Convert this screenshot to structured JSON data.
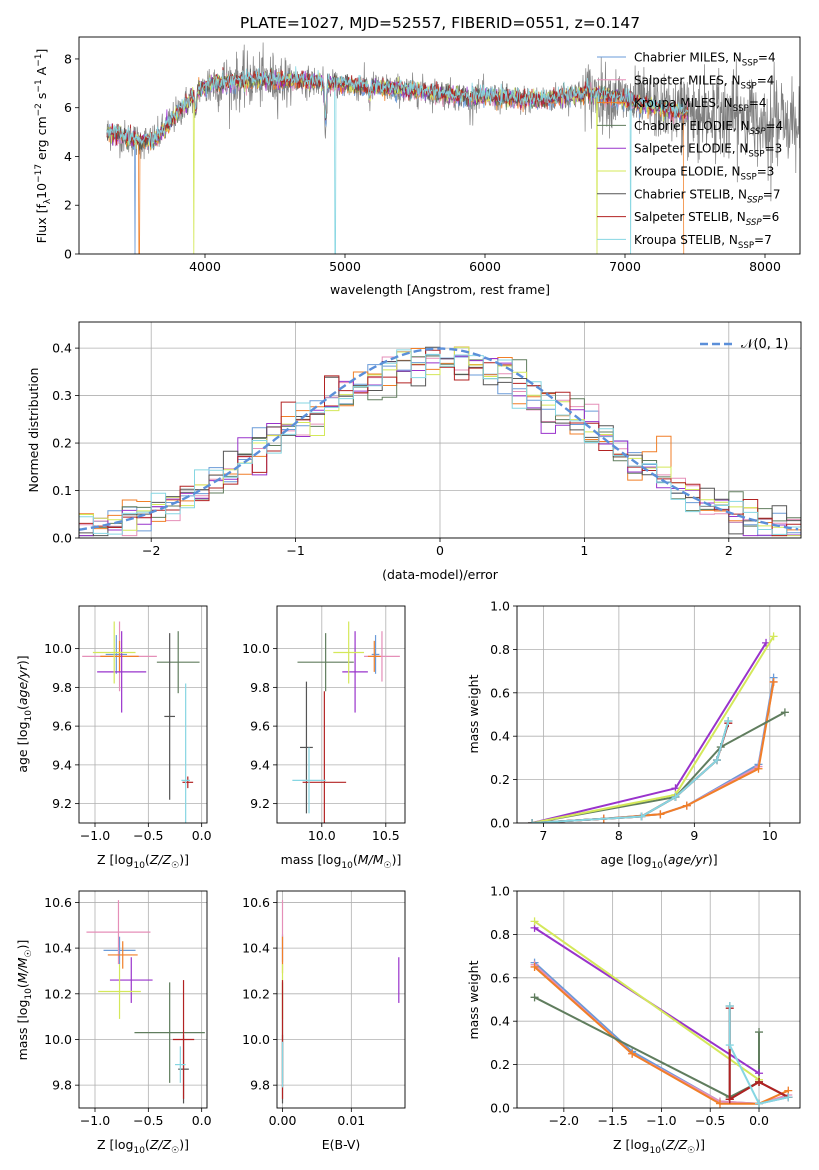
{
  "figure_title": "PLATE=1027, MJD=52557, FIBERID=0551, z=0.147",
  "colors": {
    "Chabrier MILES": "#6a9bd8",
    "Salpeter MILES": "#e58fb8",
    "Kroupa MILES": "#f07f28",
    "Chabrier ELODIE": "#607d5e",
    "Salpeter ELODIE": "#9933cc",
    "Kroupa ELODIE": "#d4e85a",
    "Chabrier STELIB": "#555555",
    "Salpeter STELIB": "#b22222",
    "Kroupa STELIB": "#86d6e2",
    "normal_curve": "#5b8fd9",
    "data_spectrum": "#808080",
    "grid": "#b0b0b0"
  },
  "chart_data": [
    {
      "id": "spectrum",
      "type": "line",
      "xlabel": "wavelength [Angstrom, rest frame]",
      "ylabel": "Flux [f_λ 10^-17 erg cm^-2 s^-1 A^-1]",
      "xlim": [
        3100,
        8250
      ],
      "ylim": [
        0,
        8.9
      ],
      "xticks": [
        4000,
        5000,
        6000,
        7000,
        8000
      ],
      "yticks": [
        0,
        2,
        4,
        6,
        8
      ],
      "grid": false,
      "legend_position": "top-right",
      "legend": [
        {
          "label": "Chabrier MILES",
          "nssp": "4",
          "sub": "SSP"
        },
        {
          "label": "Salpeter MILES",
          "nssp": "4",
          "sub": "SSP"
        },
        {
          "label": "Kroupa MILES",
          "nssp": "4",
          "sub": "SSP"
        },
        {
          "label": "Chabrier ELODIE",
          "nssp": "4",
          "sub": "SSP",
          "italic": true
        },
        {
          "label": "Salpeter ELODIE",
          "nssp": "3",
          "sub": "SSP"
        },
        {
          "label": "Kroupa ELODIE",
          "nssp": "3",
          "sub": "SSP"
        },
        {
          "label": "Chabrier STELIB",
          "nssp": "7",
          "sub": "SSP",
          "italic": true
        },
        {
          "label": "Salpeter STELIB",
          "nssp": "6",
          "sub": "SSP",
          "italic": true
        },
        {
          "label": "Kroupa STELIB",
          "nssp": "7",
          "sub": "SSP"
        }
      ],
      "continuum_knots": [
        [
          3300,
          5.0
        ],
        [
          3450,
          4.75
        ],
        [
          3550,
          4.6
        ],
        [
          3650,
          4.7
        ],
        [
          3750,
          5.4
        ],
        [
          3850,
          6.1
        ],
        [
          3950,
          6.7
        ],
        [
          4050,
          7.0
        ],
        [
          4200,
          7.05
        ],
        [
          4400,
          7.15
        ],
        [
          4600,
          7.1
        ],
        [
          4800,
          7.05
        ],
        [
          5000,
          6.95
        ],
        [
          5200,
          6.85
        ],
        [
          5400,
          6.75
        ],
        [
          5600,
          6.65
        ],
        [
          5800,
          6.5
        ],
        [
          6000,
          6.45
        ],
        [
          6200,
          6.35
        ],
        [
          6400,
          6.3
        ],
        [
          6600,
          6.5
        ],
        [
          6800,
          6.55
        ],
        [
          7000,
          6.3
        ],
        [
          7200,
          6.05
        ],
        [
          7400,
          5.8
        ]
      ],
      "absorption_features": [
        [
          3933,
          1.1
        ],
        [
          4861,
          2.5
        ],
        [
          5175,
          0.6
        ],
        [
          5890,
          0.5
        ],
        [
          6563,
          0.6
        ]
      ],
      "emission_features": [
        [
          6563,
          1.2
        ],
        [
          6716,
          0.4
        ],
        [
          6731,
          0.4
        ]
      ],
      "model_drops": [
        [
          3500,
          "Chabrier MILES"
        ],
        [
          3530,
          "Kroupa MILES"
        ],
        [
          3920,
          "Kroupa ELODIE"
        ],
        [
          4930,
          "Kroupa STELIB"
        ],
        [
          6800,
          "Kroupa ELODIE"
        ],
        [
          7040,
          "Kroupa STELIB"
        ],
        [
          7420,
          "Kroupa MILES"
        ]
      ]
    },
    {
      "id": "residual_histogram",
      "type": "histogram",
      "xlabel": "(data-model)/error",
      "ylabel": "Normed distribution",
      "xlim": [
        -2.5,
        2.5
      ],
      "ylim": [
        0,
        0.455
      ],
      "xticks": [
        -2,
        -1,
        0,
        1,
        2
      ],
      "yticks": [
        0.0,
        0.1,
        0.2,
        0.3,
        0.4
      ],
      "grid": true,
      "bin_width": 0.1,
      "legend_position": "top-right",
      "normal_label": "N(0, 1)",
      "legend_math": "𝒩(0, 1)",
      "series_names": [
        "Chabrier MILES",
        "Salpeter MILES",
        "Kroupa MILES",
        "Chabrier ELODIE",
        "Salpeter ELODIE",
        "Kroupa ELODIE",
        "Chabrier STELIB",
        "Salpeter STELIB",
        "Kroupa STELIB"
      ]
    },
    {
      "id": "age_vs_Z",
      "type": "scatter",
      "xlabel": "Z [log10(Z/Z☉)]",
      "ylabel": "age [log10(age/yr)]",
      "xlim": [
        -1.15,
        0.05
      ],
      "ylim": [
        9.1,
        10.22
      ],
      "xticks": [
        -1.0,
        -0.5,
        0.0
      ],
      "yticks": [
        9.2,
        9.4,
        9.6,
        9.8,
        10.0
      ],
      "grid": true,
      "points": [
        {
          "series": "Chabrier MILES",
          "x": -0.8,
          "y": 9.97,
          "xerr": 0.1,
          "yerr": 0.1
        },
        {
          "series": "Salpeter MILES",
          "x": -0.77,
          "y": 9.96,
          "xerr": 0.35,
          "yerr": 0.18
        },
        {
          "series": "Kroupa MILES",
          "x": -0.77,
          "y": 9.96,
          "xerr": 0.18,
          "yerr": 0.08
        },
        {
          "series": "Chabrier ELODIE",
          "x": -0.22,
          "y": 9.93,
          "xerr": 0.2,
          "yerr": 0.16
        },
        {
          "series": "Salpeter ELODIE",
          "x": -0.75,
          "y": 9.88,
          "xerr": 0.23,
          "yerr": 0.21
        },
        {
          "series": "Kroupa ELODIE",
          "x": -0.82,
          "y": 9.98,
          "xerr": 0.2,
          "yerr": 0.16
        },
        {
          "series": "Chabrier STELIB",
          "x": -0.3,
          "y": 9.65,
          "xerr": 0.05,
          "yerr": 0.43
        },
        {
          "series": "Salpeter STELIB",
          "x": -0.13,
          "y": 9.31,
          "xerr": 0.05,
          "yerr": 0.03
        },
        {
          "series": "Kroupa STELIB",
          "x": -0.15,
          "y": 9.32,
          "xerr": 0.04,
          "yerr": 0.5
        }
      ]
    },
    {
      "id": "age_vs_mass",
      "type": "scatter",
      "xlabel": "mass [log10(M/M☉)]",
      "ylabel": "",
      "xlim": [
        9.65,
        10.65
      ],
      "ylim": [
        9.1,
        10.22
      ],
      "xticks": [
        10.0,
        10.5
      ],
      "yticks": [
        9.2,
        9.4,
        9.6,
        9.8,
        10.0
      ],
      "grid": true,
      "points": [
        {
          "series": "Chabrier MILES",
          "x": 10.42,
          "y": 9.97,
          "xerr": 0.03,
          "yerr": 0.1
        },
        {
          "series": "Salpeter MILES",
          "x": 10.47,
          "y": 9.96,
          "xerr": 0.14,
          "yerr": 0.13
        },
        {
          "series": "Kroupa MILES",
          "x": 10.41,
          "y": 9.96,
          "xerr": 0.05,
          "yerr": 0.08
        },
        {
          "series": "Chabrier ELODIE",
          "x": 10.03,
          "y": 9.93,
          "xerr": 0.22,
          "yerr": 0.15
        },
        {
          "series": "Salpeter ELODIE",
          "x": 10.26,
          "y": 9.88,
          "xerr": 0.1,
          "yerr": 0.21
        },
        {
          "series": "Kroupa ELODIE",
          "x": 10.21,
          "y": 9.98,
          "xerr": 0.12,
          "yerr": 0.16
        },
        {
          "series": "Chabrier STELIB",
          "x": 9.88,
          "y": 9.49,
          "xerr": 0.05,
          "yerr": 0.34
        },
        {
          "series": "Salpeter STELIB",
          "x": 10.02,
          "y": 9.31,
          "xerr": 0.17,
          "yerr": 0.47
        },
        {
          "series": "Kroupa STELIB",
          "x": 9.9,
          "y": 9.32,
          "xerr": 0.13,
          "yerr": 0.17
        }
      ]
    },
    {
      "id": "mass_weight_vs_age",
      "type": "line",
      "xlabel": "age [log10(age/yr)]",
      "ylabel": "mass weight",
      "xlim": [
        6.65,
        10.4
      ],
      "ylim": [
        0,
        1.0
      ],
      "xticks": [
        7,
        8,
        9,
        10
      ],
      "yticks": [
        0.0,
        0.2,
        0.4,
        0.6,
        0.8,
        1.0
      ],
      "grid": true,
      "series": [
        {
          "name": "Chabrier MILES",
          "x": [
            6.85,
            7.8,
            8.55,
            8.9,
            9.85,
            10.05
          ],
          "y": [
            0.0,
            0.02,
            0.04,
            0.08,
            0.27,
            0.67
          ]
        },
        {
          "name": "Salpeter MILES",
          "x": [
            6.85,
            7.8,
            8.55,
            8.9,
            9.85,
            10.05
          ],
          "y": [
            0.0,
            0.02,
            0.04,
            0.08,
            0.26,
            0.65
          ]
        },
        {
          "name": "Kroupa MILES",
          "x": [
            6.85,
            7.8,
            8.55,
            8.9,
            9.85,
            10.05
          ],
          "y": [
            0.0,
            0.02,
            0.04,
            0.08,
            0.25,
            0.65
          ]
        },
        {
          "name": "Chabrier ELODIE",
          "x": [
            6.85,
            8.75,
            9.35,
            10.2
          ],
          "y": [
            0.0,
            0.12,
            0.35,
            0.51
          ]
        },
        {
          "name": "Salpeter ELODIE",
          "x": [
            6.85,
            8.75,
            9.95
          ],
          "y": [
            0.0,
            0.16,
            0.83
          ]
        },
        {
          "name": "Kroupa ELODIE",
          "x": [
            6.85,
            8.75,
            10.05
          ],
          "y": [
            0.0,
            0.13,
            0.86
          ]
        },
        {
          "name": "Chabrier STELIB",
          "x": [
            6.85,
            8.3,
            8.75,
            9.3,
            9.45
          ],
          "y": [
            0.0,
            0.03,
            0.12,
            0.29,
            0.47
          ]
        },
        {
          "name": "Salpeter STELIB",
          "x": [
            6.85,
            8.3,
            8.75,
            9.3,
            9.45
          ],
          "y": [
            0.0,
            0.03,
            0.12,
            0.29,
            0.46
          ]
        },
        {
          "name": "Kroupa STELIB",
          "x": [
            6.85,
            8.3,
            8.75,
            9.3,
            9.45
          ],
          "y": [
            0.0,
            0.03,
            0.12,
            0.29,
            0.47
          ]
        }
      ]
    },
    {
      "id": "mass_vs_Z",
      "type": "scatter",
      "xlabel": "Z [log10(Z/Z☉)]",
      "ylabel": "mass [log10(M/M☉)]",
      "xlim": [
        -1.15,
        0.05
      ],
      "ylim": [
        9.7,
        10.65
      ],
      "xticks": [
        -1.0,
        -0.5,
        0.0
      ],
      "yticks": [
        9.8,
        10.0,
        10.2,
        10.4,
        10.6
      ],
      "grid": true,
      "points": [
        {
          "series": "Chabrier MILES",
          "x": -0.77,
          "y": 10.39,
          "xerr": 0.15,
          "yerr": 0.06
        },
        {
          "series": "Salpeter MILES",
          "x": -0.78,
          "y": 10.47,
          "xerr": 0.3,
          "yerr": 0.14
        },
        {
          "series": "Kroupa MILES",
          "x": -0.74,
          "y": 10.37,
          "xerr": 0.14,
          "yerr": 0.06
        },
        {
          "series": "Chabrier ELODIE",
          "x": -0.3,
          "y": 10.03,
          "xerr": 0.33,
          "yerr": 0.22
        },
        {
          "series": "Salpeter ELODIE",
          "x": -0.66,
          "y": 10.26,
          "xerr": 0.2,
          "yerr": 0.1
        },
        {
          "series": "Kroupa ELODIE",
          "x": -0.77,
          "y": 10.21,
          "xerr": 0.2,
          "yerr": 0.12
        },
        {
          "series": "Chabrier STELIB",
          "x": -0.17,
          "y": 9.87,
          "xerr": 0.05,
          "yerr": 0.15
        },
        {
          "series": "Salpeter STELIB",
          "x": -0.17,
          "y": 10.0,
          "xerr": 0.1,
          "yerr": 0.26
        },
        {
          "series": "Kroupa STELIB",
          "x": -0.2,
          "y": 9.89,
          "xerr": 0.05,
          "yerr": 0.08
        }
      ]
    },
    {
      "id": "mass_vs_EBV",
      "type": "scatter",
      "xlabel": "E(B-V)",
      "ylabel": "",
      "xlim": [
        -0.0008,
        0.0178
      ],
      "ylim": [
        9.7,
        10.65
      ],
      "xticks": [
        0.0,
        0.01
      ],
      "xticklabels": [
        "0.00",
        "0.01"
      ],
      "yticks": [
        9.8,
        10.0,
        10.2,
        10.4,
        10.6
      ],
      "grid": true,
      "points": [
        {
          "series": "Chabrier MILES",
          "x": 0.0,
          "y": 10.4,
          "xerr": 0.0,
          "yerr": 0.06
        },
        {
          "series": "Salpeter MILES",
          "x": 0.0,
          "y": 10.47,
          "xerr": 0.0,
          "yerr": 0.14
        },
        {
          "series": "Kroupa MILES",
          "x": 0.0,
          "y": 10.37,
          "xerr": 0.0,
          "yerr": 0.08
        },
        {
          "series": "Chabrier ELODIE",
          "x": 0.0,
          "y": 10.03,
          "xerr": 0.0,
          "yerr": 0.22
        },
        {
          "series": "Salpeter ELODIE",
          "x": 0.0169,
          "y": 10.26,
          "xerr": 0.0,
          "yerr": 0.1
        },
        {
          "series": "Kroupa ELODIE",
          "x": 0.0,
          "y": 10.21,
          "xerr": 0.0,
          "yerr": 0.12
        },
        {
          "series": "Chabrier STELIB",
          "x": 0.0,
          "y": 9.87,
          "xerr": 0.0,
          "yerr": 0.15
        },
        {
          "series": "Salpeter STELIB",
          "x": 0.0,
          "y": 10.0,
          "xerr": 0.0,
          "yerr": 0.26
        },
        {
          "series": "Kroupa STELIB",
          "x": 0.0,
          "y": 9.89,
          "xerr": 0.0,
          "yerr": 0.1
        }
      ]
    },
    {
      "id": "mass_weight_vs_Z",
      "type": "line",
      "xlabel": "Z [log10(Z/Z☉)]",
      "ylabel": "mass weight",
      "xlim": [
        -2.48,
        0.42
      ],
      "ylim": [
        0,
        1.0
      ],
      "xticks": [
        -2.0,
        -1.5,
        -1.0,
        -0.5,
        0.0
      ],
      "yticks": [
        0.0,
        0.2,
        0.4,
        0.6,
        0.8,
        1.0
      ],
      "grid": true,
      "series": [
        {
          "name": "Chabrier MILES",
          "x": [
            -2.3,
            -1.3,
            -0.4,
            0.0,
            0.3
          ],
          "y": [
            0.67,
            0.26,
            0.03,
            0.02,
            0.05
          ]
        },
        {
          "name": "Salpeter MILES",
          "x": [
            -2.3,
            -1.3,
            -0.4,
            0.0,
            0.3
          ],
          "y": [
            0.66,
            0.25,
            0.03,
            0.02,
            0.06
          ]
        },
        {
          "name": "Kroupa MILES",
          "x": [
            -2.3,
            -1.3,
            -0.4,
            0.0,
            0.3
          ],
          "y": [
            0.65,
            0.25,
            0.02,
            0.02,
            0.08
          ]
        },
        {
          "name": "Chabrier ELODIE",
          "x": [
            -2.3,
            -0.3,
            0.0,
            0.0
          ],
          "y": [
            0.51,
            0.05,
            0.12,
            0.35
          ]
        },
        {
          "name": "Salpeter ELODIE",
          "x": [
            -2.3,
            0.0
          ],
          "y": [
            0.83,
            0.16
          ]
        },
        {
          "name": "Kroupa ELODIE",
          "x": [
            -2.3,
            0.0
          ],
          "y": [
            0.86,
            0.13
          ]
        },
        {
          "name": "Chabrier STELIB",
          "x": [
            -0.3,
            -0.3,
            0.0,
            0.3
          ],
          "y": [
            0.47,
            0.04,
            0.12,
            0.05
          ]
        },
        {
          "name": "Salpeter STELIB",
          "x": [
            -0.3,
            -0.3,
            0.0,
            0.3
          ],
          "y": [
            0.46,
            0.04,
            0.12,
            0.05
          ]
        },
        {
          "name": "Kroupa STELIB",
          "x": [
            -0.3,
            -0.3,
            0.0,
            0.3
          ],
          "y": [
            0.47,
            0.29,
            0.02,
            0.05
          ]
        }
      ]
    }
  ]
}
